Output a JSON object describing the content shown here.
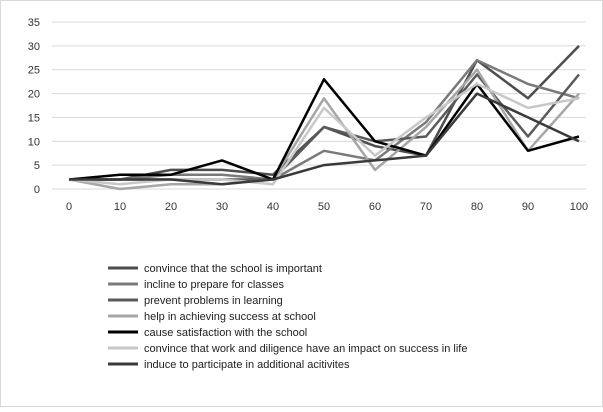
{
  "chart_data": {
    "type": "line",
    "x": [
      0,
      10,
      20,
      30,
      40,
      50,
      60,
      70,
      80,
      90,
      100
    ],
    "ylim": [
      0,
      35
    ],
    "y_ticks": [
      0,
      5,
      10,
      15,
      20,
      25,
      30,
      35
    ],
    "grid": true,
    "legend_placement": "bottom-left",
    "series": [
      {
        "name": "convince that the school is important",
        "color": "#4d4d4d",
        "values": [
          2,
          2,
          4,
          4,
          3,
          13,
          9,
          7,
          27,
          19,
          30
        ]
      },
      {
        "name": "incline to prepare for classes",
        "color": "#7a7a7a",
        "values": [
          2,
          2,
          3,
          3,
          2,
          8,
          6,
          14,
          27,
          22,
          19
        ]
      },
      {
        "name": "prevent problems in learning",
        "color": "#5a5a5a",
        "values": [
          2,
          2,
          2,
          2,
          2,
          13,
          10,
          11,
          24,
          11,
          24
        ]
      },
      {
        "name": "help in achieving success at school",
        "color": "#a6a6a6",
        "values": [
          2,
          0,
          1,
          1,
          2,
          19,
          4,
          13,
          25,
          8,
          20
        ]
      },
      {
        "name": "cause satisfaction with the school",
        "color": "#000000",
        "values": [
          2,
          3,
          3,
          6,
          2,
          23,
          10,
          7,
          22,
          8,
          11
        ]
      },
      {
        "name": "convince that work and diligence have an impact on success in life",
        "color": "#c8c8c8",
        "values": [
          2,
          1,
          2,
          2,
          1,
          17,
          7,
          15,
          22,
          17,
          19
        ]
      },
      {
        "name": "induce to participate in additional acitivites",
        "color": "#3a3a3a",
        "values": [
          2,
          2,
          2,
          1,
          2,
          5,
          6,
          7,
          20,
          15,
          10
        ]
      }
    ]
  }
}
